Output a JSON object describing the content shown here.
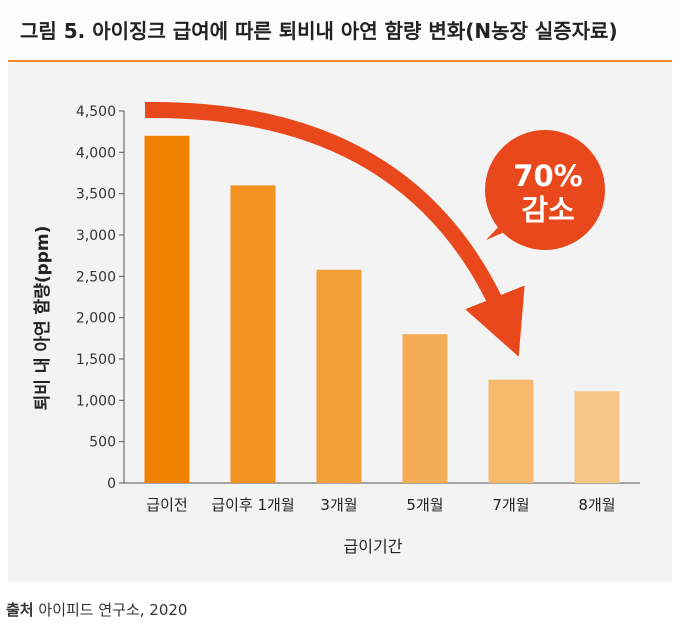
{
  "title": "그림 5. 아이징크 급여에 따른 퇴비내 아연 함량 변화(N농장 실증자료)",
  "source": {
    "label": "출처",
    "text": "아이피드 연구소, 2020"
  },
  "callout": {
    "line1": "70%",
    "line2": "감소"
  },
  "colors": {
    "accent_line": "#f08a24",
    "arrow": "#e8481c",
    "bars": [
      "#ef8200",
      "#f29220",
      "#f3a03a",
      "#f5ad55",
      "#f6b96e",
      "#f8c589"
    ]
  },
  "chart_data": {
    "type": "bar",
    "categories": [
      "급이전",
      "급이후 1개월",
      "3개월",
      "5개월",
      "7개월",
      "8개월"
    ],
    "values": [
      4200,
      3600,
      2580,
      1800,
      1250,
      1110
    ],
    "ylim": [
      0,
      4500
    ],
    "yticks": [
      0,
      500,
      1000,
      1500,
      2000,
      2500,
      3000,
      3500,
      4000,
      4500
    ],
    "ytick_labels": [
      "0",
      "500",
      "1,000",
      "1,500",
      "2,000",
      "2,500",
      "3,000",
      "3,500",
      "4,000",
      "4,500"
    ],
    "xlabel": "급이기간",
    "ylabel": "퇴비 내 아연 함량(ppm)",
    "grid": false
  }
}
